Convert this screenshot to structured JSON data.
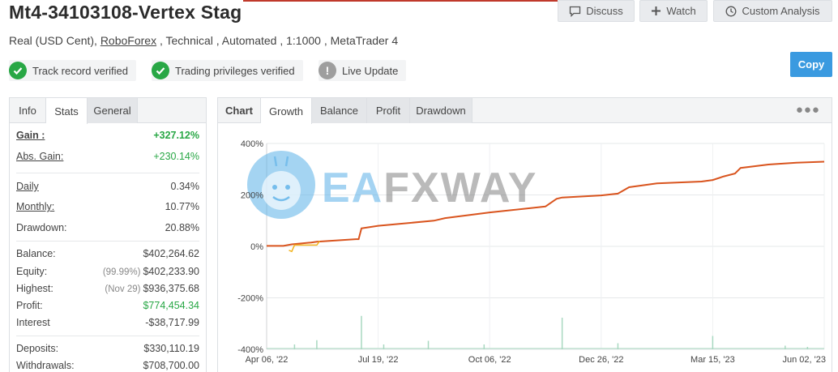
{
  "header": {
    "title": "Mt4-34103108-Vertex Stag",
    "subtitle_prefix": "Real (USD Cent), ",
    "subtitle_link": "RoboForex",
    "subtitle_suffix": " , Technical , Automated , 1:1000 , MetaTrader 4"
  },
  "actions": {
    "discuss": "Discuss",
    "watch": "Watch",
    "custom_analysis": "Custom Analysis",
    "copy": "Copy"
  },
  "badges": [
    {
      "label": "Track record verified",
      "icon": "check-icon",
      "color": "#28a745"
    },
    {
      "label": "Trading privileges verified",
      "icon": "check-icon",
      "color": "#28a745"
    },
    {
      "label": "Live Update",
      "icon": "exclamation-icon",
      "color": "#9e9e9e"
    }
  ],
  "stats_tabs": [
    "Info",
    "Stats",
    "General"
  ],
  "stats": {
    "gain": {
      "label": "Gain :",
      "value": "+327.12%"
    },
    "abs_gain": {
      "label": "Abs. Gain:",
      "value": "+230.14%"
    },
    "daily": {
      "label": "Daily",
      "value": "0.34%"
    },
    "monthly": {
      "label": "Monthly:",
      "value": "10.77%"
    },
    "drawdown": {
      "label": "Drawdown:",
      "value": "20.88%"
    },
    "balance": {
      "label": "Balance:",
      "value": "$402,264.62"
    },
    "equity": {
      "label": "Equity:",
      "pre": "(99.99%)",
      "value": "$402,233.90"
    },
    "highest": {
      "label": "Highest:",
      "pre": "(Nov 29)",
      "value": "$936,375.68"
    },
    "profit": {
      "label": "Profit:",
      "value": "$774,454.34"
    },
    "interest": {
      "label": "Interest",
      "value": "-$38,717.99"
    },
    "deposits": {
      "label": "Deposits:",
      "value": "$330,110.19"
    },
    "withdrawals": {
      "label": "Withdrawals:",
      "value": "$708,700.00"
    }
  },
  "chart_tabs": [
    "Chart",
    "Growth",
    "Balance",
    "Profit",
    "Drawdown"
  ],
  "watermark": "EAFXWAY",
  "colors": {
    "accent": "#3a9ae0",
    "growth_line": "#d9541e",
    "equity_line": "#f2b21b",
    "volume_bars": "#a8d8c0",
    "positive": "#28a745"
  },
  "chart_data": {
    "type": "line",
    "ylim": [
      -400,
      400
    ],
    "y_ticks": [
      "400%",
      "200%",
      "0%",
      "-200%",
      "-400%"
    ],
    "x_ticks": [
      "Apr 06, '22",
      "Jul 19, '22",
      "Oct 06, '22",
      "Dec 26, '22",
      "Mar 15, '23",
      "Jun 02, '23"
    ],
    "series": [
      {
        "x": [
          0,
          0.03,
          0.045,
          0.08,
          0.09,
          0.16,
          0.165,
          0.17,
          0.2,
          0.3,
          0.32,
          0.4,
          0.5,
          0.52,
          0.53,
          0.6,
          0.63,
          0.65,
          0.7,
          0.78,
          0.8,
          0.82,
          0.84,
          0.85,
          0.9,
          0.95,
          1.0
        ],
        "y": [
          2,
          2,
          8,
          15,
          18,
          28,
          28,
          70,
          80,
          100,
          110,
          132,
          155,
          185,
          190,
          198,
          205,
          230,
          245,
          252,
          258,
          272,
          283,
          305,
          318,
          325,
          329
        ]
      },
      {
        "x": [
          0.04,
          0.045,
          0.05,
          0.09,
          0.095
        ],
        "y": [
          -15,
          -20,
          5,
          5,
          20
        ]
      }
    ],
    "volume": [
      {
        "x": 0.05,
        "v": 8
      },
      {
        "x": 0.09,
        "v": 15
      },
      {
        "x": 0.17,
        "v": 55
      },
      {
        "x": 0.21,
        "v": 8
      },
      {
        "x": 0.29,
        "v": 14
      },
      {
        "x": 0.39,
        "v": 8
      },
      {
        "x": 0.53,
        "v": 52
      },
      {
        "x": 0.63,
        "v": 10
      },
      {
        "x": 0.8,
        "v": 22
      },
      {
        "x": 0.93,
        "v": 6
      },
      {
        "x": 0.97,
        "v": 4
      }
    ],
    "grid": true
  }
}
